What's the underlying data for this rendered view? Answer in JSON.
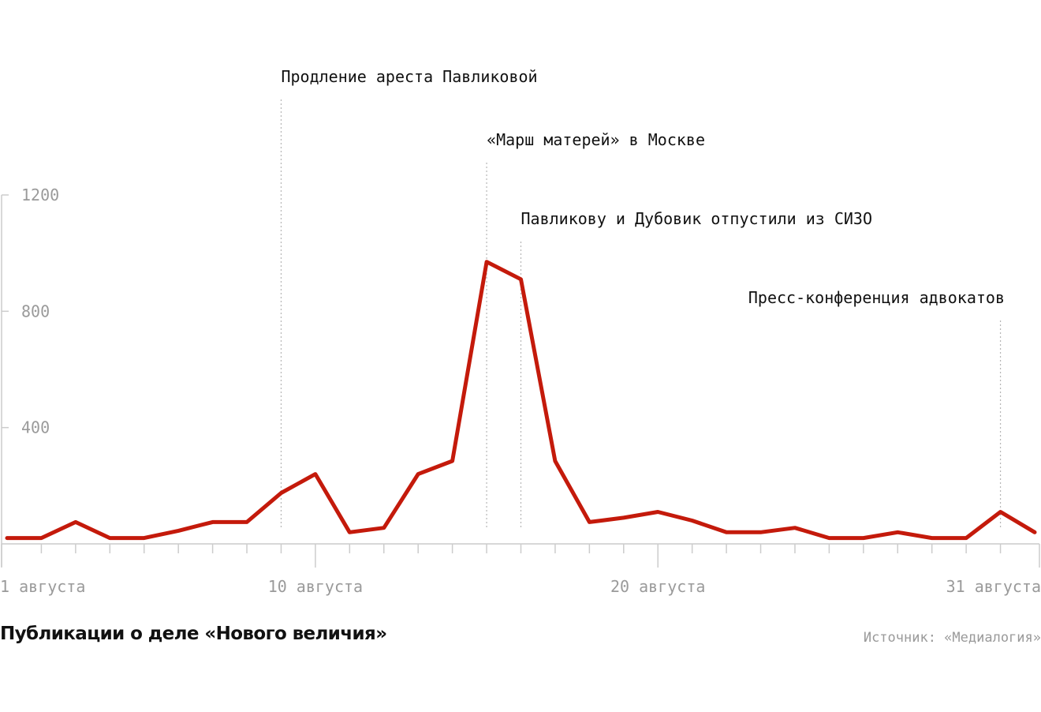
{
  "chart_data": {
    "type": "line",
    "title": "Публикации о деле «Нового величия»",
    "source": "Источник: «Медиалогия»",
    "x_start": 1,
    "x_end": 31,
    "x_days": [
      1,
      2,
      3,
      4,
      5,
      6,
      7,
      8,
      9,
      10,
      11,
      12,
      13,
      14,
      15,
      16,
      17,
      18,
      19,
      20,
      21,
      22,
      23,
      24,
      25,
      26,
      27,
      28,
      29,
      30,
      31
    ],
    "x_tick_labels": [
      {
        "day": 1,
        "label": "1 августа"
      },
      {
        "day": 10,
        "label": "10 августа"
      },
      {
        "day": 20,
        "label": "20 августа"
      },
      {
        "day": 31,
        "label": "31 августа"
      }
    ],
    "series": [
      {
        "color": "#c41a0b",
        "x": [
          1,
          2,
          3,
          4,
          5,
          6,
          7,
          8,
          9,
          10,
          11,
          12,
          13,
          14,
          15,
          16,
          17,
          18,
          19,
          20,
          21,
          22,
          23,
          24,
          25,
          26,
          27,
          28,
          29,
          30,
          31
        ],
        "y": [
          20,
          20,
          75,
          20,
          20,
          45,
          75,
          75,
          175,
          240,
          40,
          55,
          240,
          285,
          970,
          910,
          285,
          75,
          90,
          110,
          80,
          40,
          40,
          55,
          20,
          20,
          40,
          20,
          20,
          110,
          40
        ]
      }
    ],
    "y_ticks": [
      400,
      800,
      1200
    ],
    "ylim": [
      0,
      1200
    ],
    "annotations": [
      {
        "day": 9,
        "label": "Продление ареста Павликовой"
      },
      {
        "day": 15,
        "label": "«Марш матерей» в Москве"
      },
      {
        "day": 16,
        "label": "Павликову и Дубовик отпустили из СИЗО"
      },
      {
        "day": 30,
        "label": "Пресс-конференция адвокатов"
      }
    ],
    "grid": false,
    "legend": "none"
  }
}
